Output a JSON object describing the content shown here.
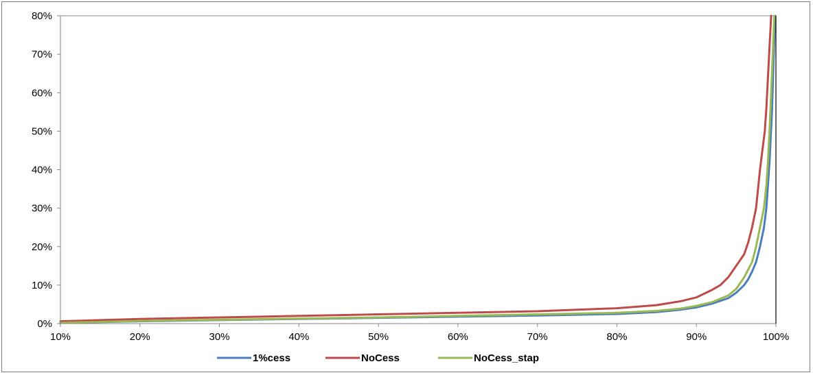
{
  "chart_data": {
    "type": "line",
    "title": "",
    "xlabel": "",
    "ylabel": "",
    "xlim": [
      0.1,
      1.0
    ],
    "ylim": [
      0.0,
      0.8
    ],
    "x_ticks": [
      "10%",
      "20%",
      "30%",
      "40%",
      "50%",
      "60%",
      "70%",
      "80%",
      "90%",
      "100%"
    ],
    "y_ticks": [
      "0%",
      "10%",
      "20%",
      "30%",
      "40%",
      "50%",
      "60%",
      "70%",
      "80%"
    ],
    "grid": false,
    "legend_position": "bottom",
    "series": [
      {
        "name": "1%cess",
        "color": "#4a7ebb",
        "x": [
          0.1,
          0.2,
          0.3,
          0.4,
          0.5,
          0.6,
          0.7,
          0.8,
          0.85,
          0.88,
          0.9,
          0.92,
          0.94,
          0.95,
          0.96,
          0.965,
          0.97,
          0.975,
          0.98,
          0.985,
          0.988,
          0.99,
          0.992,
          0.995,
          0.997,
          0.999
        ],
        "y": [
          0.002,
          0.006,
          0.009,
          0.012,
          0.015,
          0.018,
          0.021,
          0.025,
          0.03,
          0.036,
          0.042,
          0.052,
          0.066,
          0.08,
          0.1,
          0.115,
          0.135,
          0.16,
          0.2,
          0.25,
          0.3,
          0.36,
          0.42,
          0.55,
          0.68,
          0.8
        ]
      },
      {
        "name": "NoCess",
        "color": "#be4b48",
        "x": [
          0.1,
          0.2,
          0.3,
          0.4,
          0.5,
          0.6,
          0.7,
          0.8,
          0.85,
          0.88,
          0.9,
          0.92,
          0.93,
          0.94,
          0.95,
          0.96,
          0.965,
          0.97,
          0.975,
          0.98,
          0.983,
          0.986,
          0.988,
          0.99,
          0.992,
          0.994
        ],
        "y": [
          0.006,
          0.012,
          0.016,
          0.02,
          0.024,
          0.028,
          0.032,
          0.04,
          0.048,
          0.058,
          0.068,
          0.088,
          0.1,
          0.12,
          0.15,
          0.18,
          0.21,
          0.25,
          0.3,
          0.4,
          0.45,
          0.5,
          0.56,
          0.64,
          0.72,
          0.8
        ]
      },
      {
        "name": "NoCess_stap",
        "color": "#98b954",
        "x": [
          0.1,
          0.2,
          0.3,
          0.4,
          0.5,
          0.6,
          0.7,
          0.8,
          0.85,
          0.88,
          0.9,
          0.92,
          0.94,
          0.95,
          0.96,
          0.97,
          0.975,
          0.98,
          0.985,
          0.988,
          0.99,
          0.992,
          0.994,
          0.996,
          0.998
        ],
        "y": [
          0.002,
          0.007,
          0.01,
          0.013,
          0.016,
          0.02,
          0.024,
          0.028,
          0.033,
          0.039,
          0.046,
          0.056,
          0.073,
          0.09,
          0.12,
          0.16,
          0.2,
          0.25,
          0.3,
          0.36,
          0.42,
          0.5,
          0.6,
          0.7,
          0.8
        ]
      }
    ]
  }
}
